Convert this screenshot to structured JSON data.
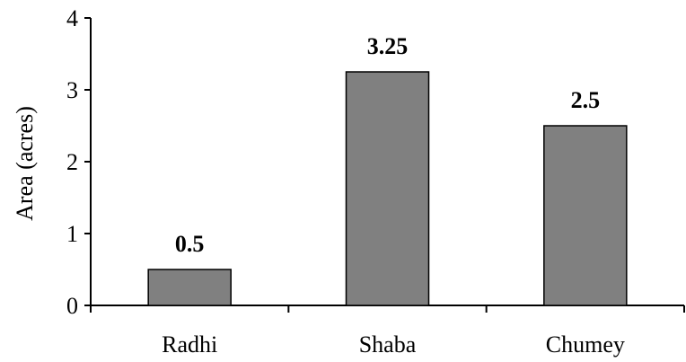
{
  "chart_data": {
    "type": "bar",
    "title": "",
    "xlabel": "",
    "ylabel": "Area (acres)",
    "categories": [
      "Radhi",
      "Shaba",
      "Chumey"
    ],
    "values": [
      0.5,
      3.25,
      2.5
    ],
    "data_labels": [
      "0.5",
      "3.25",
      "2.5"
    ],
    "ylim": [
      0,
      4
    ],
    "y_ticks": [
      0,
      1,
      2,
      3,
      4
    ],
    "y_tick_labels": [
      "0",
      "1",
      "2",
      "3",
      "4"
    ],
    "grid": false,
    "legend": "none",
    "bar_color": "#808080",
    "bar_edge_color": "#000000"
  }
}
